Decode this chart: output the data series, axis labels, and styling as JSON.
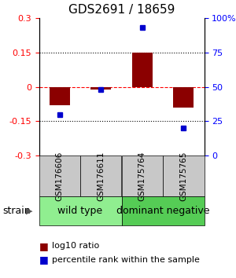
{
  "title": "GDS2691 / 18659",
  "samples": [
    "GSM176606",
    "GSM176611",
    "GSM175764",
    "GSM175765"
  ],
  "log10_ratios": [
    -0.08,
    -0.01,
    0.15,
    -0.09
  ],
  "percentile_ranks": [
    30,
    48,
    93,
    20
  ],
  "groups": [
    {
      "label": "wild type",
      "samples": [
        0,
        1
      ],
      "color": "#90ee90"
    },
    {
      "label": "dominant negative",
      "samples": [
        2,
        3
      ],
      "color": "#55cc55"
    }
  ],
  "group_label": "strain",
  "ylim_left": [
    -0.3,
    0.3
  ],
  "ylim_right": [
    0,
    100
  ],
  "yticks_left": [
    -0.3,
    -0.15,
    0,
    0.15,
    0.3
  ],
  "yticks_right": [
    0,
    25,
    50,
    75,
    100
  ],
  "ytick_labels_right": [
    "0",
    "25",
    "50",
    "75",
    "100%"
  ],
  "hlines_dotted": [
    -0.15,
    0.15
  ],
  "hline_dashed": 0,
  "bar_color": "#8b0000",
  "square_color": "#0000cd",
  "bar_width": 0.5,
  "background_color": "#ffffff",
  "plot_bg_color": "#ffffff",
  "title_fontsize": 11,
  "tick_fontsize": 8,
  "legend_fontsize": 8,
  "group_fontsize": 9,
  "sample_fontsize": 7.5
}
